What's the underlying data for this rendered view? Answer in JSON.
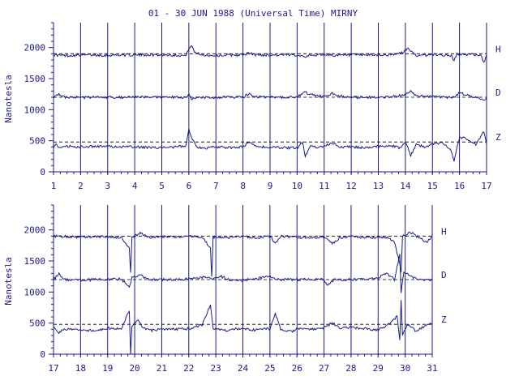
{
  "chart_data": [
    {
      "type": "line",
      "title": "01 - 30 JUN 1988 (Universal Time) MIRNY",
      "ylabel": "Nanotesla",
      "xlabel": "",
      "x_tick_labels": [
        "1",
        "2",
        "3",
        "4",
        "5",
        "6",
        "7",
        "8",
        "9",
        "10",
        "11",
        "12",
        "13",
        "14",
        "15",
        "16",
        "17"
      ],
      "xlim": [
        1,
        17
      ],
      "y_tick_labels": [
        "0",
        "500",
        "1000",
        "1500",
        "2000"
      ],
      "ylim": [
        0,
        2400
      ],
      "grid": "vertical day lines",
      "baselines": [
        1900,
        1200,
        480
      ],
      "series": [
        {
          "name": "H",
          "baseline": 1900,
          "points": [
            [
              1,
              1880
            ],
            [
              1.5,
              1870
            ],
            [
              2,
              1880
            ],
            [
              2.5,
              1880
            ],
            [
              3,
              1875
            ],
            [
              3.5,
              1880
            ],
            [
              4,
              1880
            ],
            [
              4.5,
              1885
            ],
            [
              5,
              1880
            ],
            [
              5.5,
              1880
            ],
            [
              5.9,
              1870
            ],
            [
              6.0,
              1990
            ],
            [
              6.1,
              2030
            ],
            [
              6.2,
              1930
            ],
            [
              6.5,
              1880
            ],
            [
              7,
              1870
            ],
            [
              7.5,
              1880
            ],
            [
              8,
              1880
            ],
            [
              8.2,
              1910
            ],
            [
              8.5,
              1880
            ],
            [
              9,
              1880
            ],
            [
              9.5,
              1880
            ],
            [
              10,
              1880
            ],
            [
              10.3,
              1860
            ],
            [
              10.7,
              1880
            ],
            [
              11,
              1890
            ],
            [
              11.5,
              1870
            ],
            [
              12,
              1880
            ],
            [
              12.5,
              1880
            ],
            [
              13,
              1880
            ],
            [
              13.5,
              1880
            ],
            [
              13.9,
              1920
            ],
            [
              14.1,
              1990
            ],
            [
              14.3,
              1900
            ],
            [
              14.5,
              1860
            ],
            [
              14.8,
              1880
            ],
            [
              15,
              1890
            ],
            [
              15.3,
              1880
            ],
            [
              15.7,
              1870
            ],
            [
              15.8,
              1780
            ],
            [
              15.9,
              1900
            ],
            [
              16.2,
              1880
            ],
            [
              16.5,
              1890
            ],
            [
              16.8,
              1870
            ],
            [
              16.9,
              1760
            ],
            [
              17,
              1880
            ]
          ]
        },
        {
          "name": "D",
          "baseline": 1200,
          "points": [
            [
              1,
              1200
            ],
            [
              1.2,
              1240
            ],
            [
              1.4,
              1200
            ],
            [
              2,
              1195
            ],
            [
              2.5,
              1200
            ],
            [
              3,
              1200
            ],
            [
              3.5,
              1200
            ],
            [
              4,
              1200
            ],
            [
              4.5,
              1200
            ],
            [
              5,
              1205
            ],
            [
              5.5,
              1200
            ],
            [
              5.9,
              1190
            ],
            [
              6.0,
              1260
            ],
            [
              6.1,
              1160
            ],
            [
              6.3,
              1200
            ],
            [
              7,
              1200
            ],
            [
              7.5,
              1200
            ],
            [
              8,
              1200
            ],
            [
              8.2,
              1250
            ],
            [
              8.5,
              1210
            ],
            [
              9,
              1200
            ],
            [
              9.5,
              1200
            ],
            [
              10,
              1210
            ],
            [
              10.3,
              1280
            ],
            [
              10.6,
              1230
            ],
            [
              11,
              1210
            ],
            [
              11.3,
              1260
            ],
            [
              11.6,
              1220
            ],
            [
              12,
              1200
            ],
            [
              12.5,
              1200
            ],
            [
              13,
              1200
            ],
            [
              13.5,
              1210
            ],
            [
              14,
              1240
            ],
            [
              14.2,
              1290
            ],
            [
              14.4,
              1220
            ],
            [
              15,
              1210
            ],
            [
              15.4,
              1200
            ],
            [
              15.8,
              1200
            ],
            [
              16.0,
              1270
            ],
            [
              16.3,
              1230
            ],
            [
              16.6,
              1200
            ],
            [
              16.9,
              1160
            ],
            [
              17,
              1200
            ]
          ]
        },
        {
          "name": "Z",
          "baseline": 480,
          "points": [
            [
              1,
              400
            ],
            [
              1.1,
              430
            ],
            [
              1.3,
              380
            ],
            [
              1.5,
              410
            ],
            [
              2,
              400
            ],
            [
              2.5,
              410
            ],
            [
              3,
              410
            ],
            [
              3.5,
              400
            ],
            [
              4,
              400
            ],
            [
              4.5,
              390
            ],
            [
              5,
              390
            ],
            [
              5.5,
              400
            ],
            [
              5.9,
              420
            ],
            [
              6.0,
              690
            ],
            [
              6.1,
              560
            ],
            [
              6.3,
              400
            ],
            [
              6.6,
              380
            ],
            [
              7,
              400
            ],
            [
              7.5,
              390
            ],
            [
              8,
              400
            ],
            [
              8.2,
              480
            ],
            [
              8.5,
              400
            ],
            [
              9,
              400
            ],
            [
              9.5,
              390
            ],
            [
              10,
              380
            ],
            [
              10.2,
              480
            ],
            [
              10.3,
              250
            ],
            [
              10.5,
              420
            ],
            [
              10.8,
              390
            ],
            [
              11,
              420
            ],
            [
              11.3,
              470
            ],
            [
              11.6,
              400
            ],
            [
              12,
              400
            ],
            [
              12.5,
              390
            ],
            [
              13,
              410
            ],
            [
              13.5,
              420
            ],
            [
              13.8,
              380
            ],
            [
              14,
              490
            ],
            [
              14.2,
              260
            ],
            [
              14.4,
              440
            ],
            [
              14.7,
              400
            ],
            [
              15,
              450
            ],
            [
              15.4,
              460
            ],
            [
              15.7,
              330
            ],
            [
              15.8,
              170
            ],
            [
              16.0,
              560
            ],
            [
              16.3,
              530
            ],
            [
              16.6,
              440
            ],
            [
              16.9,
              650
            ],
            [
              17,
              450
            ]
          ]
        }
      ]
    },
    {
      "type": "line",
      "ylabel": "Nanotesla",
      "xlabel": "",
      "x_tick_labels": [
        "17",
        "18",
        "19",
        "20",
        "21",
        "22",
        "23",
        "24",
        "25",
        "26",
        "27",
        "28",
        "29",
        "30",
        "31"
      ],
      "xlim": [
        17,
        31
      ],
      "y_tick_labels": [
        "0",
        "500",
        "1000",
        "1500",
        "2000"
      ],
      "ylim": [
        0,
        2400
      ],
      "grid": "vertical day lines",
      "baselines": [
        1900,
        1200,
        480
      ],
      "series": [
        {
          "name": "H",
          "baseline": 1900,
          "points": [
            [
              17,
              1900
            ],
            [
              17.5,
              1890
            ],
            [
              18,
              1880
            ],
            [
              18.5,
              1890
            ],
            [
              19,
              1890
            ],
            [
              19.5,
              1880
            ],
            [
              19.8,
              1700
            ],
            [
              19.85,
              1300
            ],
            [
              19.9,
              1880
            ],
            [
              20.2,
              1950
            ],
            [
              20.5,
              1880
            ],
            [
              21,
              1890
            ],
            [
              21.5,
              1880
            ],
            [
              22,
              1900
            ],
            [
              22.5,
              1880
            ],
            [
              22.8,
              1700
            ],
            [
              22.85,
              1260
            ],
            [
              22.9,
              1880
            ],
            [
              23.5,
              1880
            ],
            [
              24,
              1890
            ],
            [
              24.5,
              1870
            ],
            [
              25,
              1900
            ],
            [
              25.2,
              1780
            ],
            [
              25.4,
              1900
            ],
            [
              26,
              1880
            ],
            [
              26.5,
              1870
            ],
            [
              27,
              1890
            ],
            [
              27.3,
              1780
            ],
            [
              27.6,
              1880
            ],
            [
              28,
              1890
            ],
            [
              28.5,
              1880
            ],
            [
              29,
              1880
            ],
            [
              29.3,
              1880
            ],
            [
              29.6,
              1820
            ],
            [
              29.8,
              1450
            ],
            [
              29.85,
              1300
            ],
            [
              29.9,
              1900
            ],
            [
              30.2,
              1960
            ],
            [
              30.5,
              1880
            ],
            [
              30.8,
              1800
            ],
            [
              31,
              1900
            ]
          ]
        },
        {
          "name": "D",
          "baseline": 1200,
          "points": [
            [
              17,
              1200
            ],
            [
              17.2,
              1290
            ],
            [
              17.4,
              1200
            ],
            [
              18,
              1190
            ],
            [
              18.5,
              1200
            ],
            [
              19,
              1200
            ],
            [
              19.5,
              1210
            ],
            [
              19.8,
              1080
            ],
            [
              19.9,
              1230
            ],
            [
              20.2,
              1280
            ],
            [
              20.5,
              1200
            ],
            [
              21,
              1200
            ],
            [
              21.5,
              1200
            ],
            [
              22,
              1210
            ],
            [
              22.6,
              1240
            ],
            [
              22.85,
              1200
            ],
            [
              23.2,
              1250
            ],
            [
              23.5,
              1200
            ],
            [
              24,
              1190
            ],
            [
              24.5,
              1210
            ],
            [
              25,
              1260
            ],
            [
              25.3,
              1200
            ],
            [
              26,
              1200
            ],
            [
              26.5,
              1200
            ],
            [
              27,
              1200
            ],
            [
              27.1,
              1110
            ],
            [
              27.4,
              1200
            ],
            [
              28,
              1200
            ],
            [
              28.5,
              1200
            ],
            [
              29,
              1230
            ],
            [
              29.3,
              1300
            ],
            [
              29.6,
              1200
            ],
            [
              29.8,
              1600
            ],
            [
              29.85,
              1000
            ],
            [
              29.95,
              1320
            ],
            [
              30.3,
              1230
            ],
            [
              30.6,
              1200
            ],
            [
              31,
              1190
            ]
          ]
        },
        {
          "name": "Z",
          "baseline": 480,
          "points": [
            [
              17,
              460
            ],
            [
              17.2,
              350
            ],
            [
              17.4,
              400
            ],
            [
              18,
              390
            ],
            [
              18.5,
              380
            ],
            [
              19,
              420
            ],
            [
              19.5,
              400
            ],
            [
              19.8,
              700
            ],
            [
              19.85,
              0
            ],
            [
              19.9,
              440
            ],
            [
              20.1,
              560
            ],
            [
              20.3,
              420
            ],
            [
              20.6,
              380
            ],
            [
              21,
              400
            ],
            [
              21.5,
              400
            ],
            [
              22,
              410
            ],
            [
              22.5,
              470
            ],
            [
              22.8,
              790
            ],
            [
              22.9,
              420
            ],
            [
              23.3,
              380
            ],
            [
              23.7,
              410
            ],
            [
              24,
              400
            ],
            [
              24.5,
              390
            ],
            [
              25,
              410
            ],
            [
              25.2,
              650
            ],
            [
              25.4,
              400
            ],
            [
              25.8,
              360
            ],
            [
              26,
              410
            ],
            [
              26.5,
              400
            ],
            [
              27,
              420
            ],
            [
              27.3,
              510
            ],
            [
              27.6,
              420
            ],
            [
              28,
              430
            ],
            [
              28.5,
              410
            ],
            [
              29,
              390
            ],
            [
              29.4,
              480
            ],
            [
              29.7,
              610
            ],
            [
              29.8,
              220
            ],
            [
              29.85,
              860
            ],
            [
              29.9,
              300
            ],
            [
              30.1,
              480
            ],
            [
              30.4,
              370
            ],
            [
              30.7,
              450
            ],
            [
              31,
              500
            ]
          ]
        }
      ]
    }
  ]
}
